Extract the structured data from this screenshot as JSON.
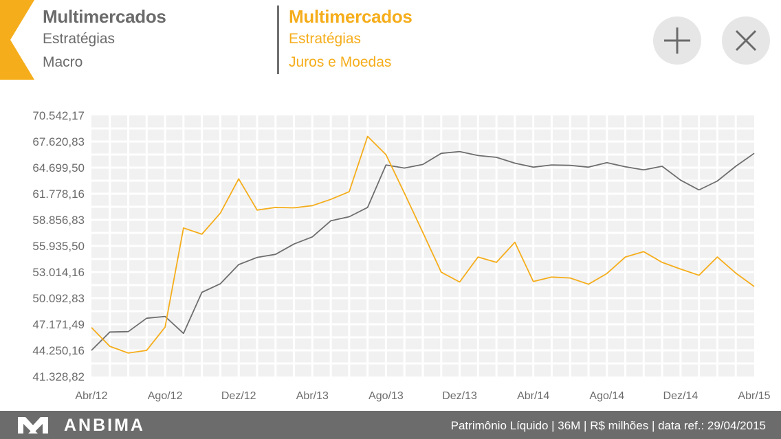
{
  "header": {
    "series_a": {
      "title": "Multimercados",
      "category": "Estratégias",
      "subcategory": "Macro"
    },
    "series_b": {
      "title": "Multimercados",
      "category": "Estratégias",
      "subcategory": "Juros e Moedas"
    },
    "back_icon": "back-arrow-icon",
    "add_icon": "plus-icon",
    "close_icon": "close-icon"
  },
  "colors": {
    "accent": "#f5ad1b",
    "series_a": "#6e6e6e",
    "series_b": "#f5ad1b",
    "footer_bg": "#6c6c6c",
    "grid_bg": "#f1f1f1"
  },
  "chart_data": {
    "type": "line",
    "ylim": [
      41328.82,
      70542.17
    ],
    "y_ticks": [
      "70.542,17",
      "67.620,83",
      "64.699,50",
      "61.778,16",
      "58.856,83",
      "55.935,50",
      "53.014,16",
      "50.092,83",
      "47.171,49",
      "44.250,16",
      "41.328,82"
    ],
    "x_ticks": [
      "Abr/12",
      "Ago/12",
      "Dez/12",
      "Abr/13",
      "Ago/13",
      "Dez/13",
      "Abr/14",
      "Ago/14",
      "Dez/14",
      "Abr/15"
    ],
    "grid": true,
    "series": [
      {
        "name": "Multimercados Estratégias Macro",
        "color": "#6e6e6e",
        "values": [
          44250,
          46300,
          46350,
          47850,
          48050,
          46150,
          50750,
          51700,
          53850,
          54650,
          55000,
          56150,
          56950,
          58750,
          59200,
          60250,
          65000,
          64650,
          65050,
          66300,
          66500,
          66050,
          65850,
          65200,
          64750,
          65000,
          64950,
          64750,
          65250,
          64800,
          64450,
          64850,
          63300,
          62200,
          63200,
          64850,
          66300
        ]
      },
      {
        "name": "Multimercados Estratégias Juros e Moedas",
        "color": "#f5ad1b",
        "values": [
          46800,
          44700,
          43950,
          44250,
          46850,
          57950,
          57250,
          59600,
          63450,
          59950,
          60250,
          60200,
          60450,
          61150,
          62000,
          68200,
          66150,
          61850,
          57450,
          53000,
          51900,
          54700,
          54100,
          56350,
          51950,
          52450,
          52350,
          51650,
          52850,
          54700,
          55300,
          54100,
          53350,
          52650,
          54700,
          52900,
          51400
        ]
      }
    ]
  },
  "footer": {
    "brand": "ANBIMA",
    "logo_icon": "anbima-logo-icon",
    "info": "Patrimônio Líquido | 36M | R$ milhões | data ref.: 29/04/2015"
  }
}
